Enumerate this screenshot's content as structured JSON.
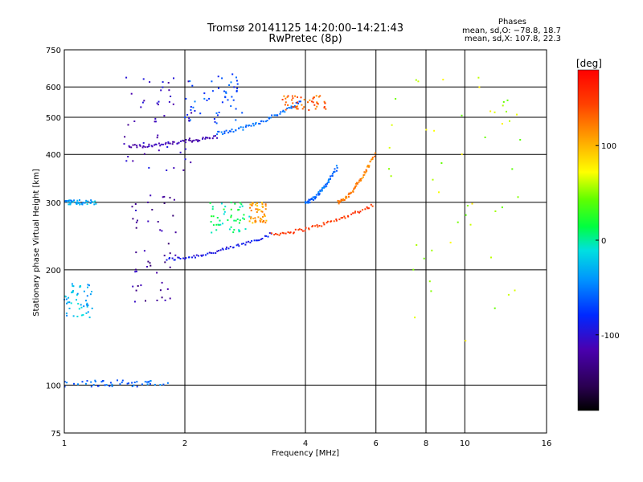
{
  "chart_data": {
    "type": "scatter",
    "title": "Tromsø 20141125 14:20:00–14:21:43",
    "subtitle": "RwPretec (8p)",
    "xlabel": "Frequency [MHz]",
    "ylabel": "Stationary phase Virtual Height [km]",
    "x_scale": "log",
    "y_scale": "log",
    "xlim": [
      1,
      16
    ],
    "ylim": [
      75,
      750
    ],
    "x_ticks": [
      1,
      2,
      4,
      6,
      8,
      10,
      16
    ],
    "y_ticks": [
      75,
      100,
      200,
      300,
      400,
      500,
      600,
      750
    ],
    "grid": true,
    "phase_info": {
      "title": "Phases",
      "o_mode": "mean, sd,O: −78.8, 18.7",
      "x_mode": "mean, sd,X: 107.8, 22.3"
    },
    "colorbar": {
      "label": "[deg]",
      "ticks": [
        100,
        0,
        -100
      ],
      "range": [
        -180,
        180
      ],
      "colormap": "rainbow (black → purple → blue → cyan → green → yellow → orange → red)"
    },
    "traces": [
      {
        "x_start": 1.8,
        "x_end": 3.3,
        "h_start": 213,
        "h_end": 248,
        "phase": -92
      },
      {
        "x_start": 3.3,
        "x_end": 5.9,
        "h_start": 248,
        "h_end": 295,
        "phase": 148
      },
      {
        "x_start": 1.45,
        "x_end": 2.4,
        "h_start": 420,
        "h_end": 445,
        "phase": -112
      },
      {
        "x_start": 2.4,
        "x_end": 3.9,
        "h_start": 455,
        "h_end": 550,
        "phase": -58
      },
      {
        "x_start": 4.0,
        "x_end": 4.8,
        "h_start": 300,
        "h_end": 370,
        "phase": -55
      },
      {
        "x_start": 4.8,
        "x_end": 5.95,
        "h_start": 300,
        "h_end": 400,
        "phase": 122
      }
    ],
    "clusters": [
      {
        "x": [
          1.0,
          1.18
        ],
        "h": [
          150,
          185
        ],
        "phase": -28
      },
      {
        "x": [
          1.0,
          1.2
        ],
        "h": [
          296,
          304
        ],
        "phase": -35
      },
      {
        "x": [
          1.0,
          1.82
        ],
        "h": [
          99,
          103
        ],
        "phase": -60
      },
      {
        "x": [
          1.46,
          1.9
        ],
        "h": [
          165,
          320
        ],
        "phase": -122
      },
      {
        "x": [
          1.4,
          2.1
        ],
        "h": [
          360,
          640
        ],
        "phase": -108
      },
      {
        "x": [
          2.0,
          2.8
        ],
        "h": [
          480,
          650
        ],
        "phase": -68
      },
      {
        "x": [
          2.3,
          2.9
        ],
        "h": [
          250,
          300
        ],
        "phase": 6
      },
      {
        "x": [
          2.9,
          3.2
        ],
        "h": [
          265,
          300
        ],
        "phase": 110
      },
      {
        "x": [
          3.5,
          4.5
        ],
        "h": [
          520,
          570
        ],
        "phase": 130
      },
      {
        "x": [
          6.0,
          14.0
        ],
        "h": [
          130,
          650
        ],
        "phase": 60
      }
    ]
  }
}
